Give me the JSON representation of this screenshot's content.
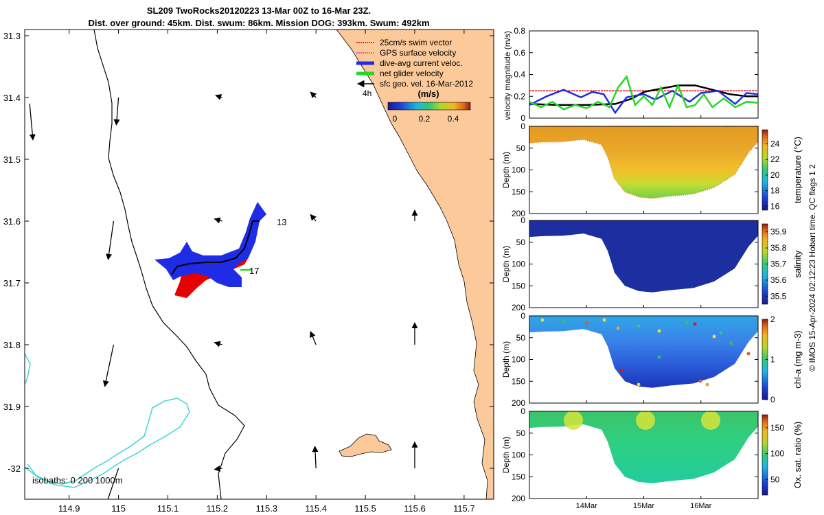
{
  "title": {
    "line1": "SL209 TwoRocks20120223 13-Mar 00Z to 16-Mar 23Z.",
    "line2": "Dist. over ground: 45km. Dist. swum: 86km. Mission DOG: 393km. Swum: 492km"
  },
  "footer": "© IMOS 15-Apr-2024 02:12:23 Hobart time. QC flags 1  2",
  "colors": {
    "land": "#fbc99a",
    "swim": "#e80000",
    "dive": "#1f2ce6",
    "net": "#27d627",
    "isobath": "#39d6d6",
    "black": "#000000",
    "gps": "#e82ce6"
  },
  "chart_data": [
    {
      "type": "map",
      "xticks": [
        "114.9",
        "115",
        "115.1",
        "115.2",
        "115.3",
        "115.4",
        "115.5",
        "115.6",
        "115.7"
      ],
      "yticks": [
        "31.3",
        "31.4",
        "31.5",
        "31.6",
        "31.7",
        "31.8",
        "31.9",
        "-32"
      ],
      "xlim": [
        114.81,
        115.76
      ],
      "ylim": [
        -31.29,
        -32.05
      ],
      "legend": [
        {
          "label": "25cm/s swim vector",
          "color": "#e80000"
        },
        {
          "label": "GPS surface velocity",
          "color": "#e82ce6"
        },
        {
          "label": "dive-avg current veloc.",
          "color": "#1f2ce6"
        },
        {
          "label": "net glider velocity",
          "color": "#27d627"
        },
        {
          "label": "sfc geo. vel. 16-Mar-2012",
          "color": "#000000"
        }
      ],
      "scale_label": "4h",
      "colorbar": {
        "title": "(m/s)",
        "ticks": [
          "0",
          "0.2",
          "0.4"
        ],
        "range": [
          0,
          0.5
        ]
      },
      "annotations": [
        "13",
        "17"
      ],
      "isobath_label": "isobaths: 0   200  1000m",
      "track": [
        [
          115.25,
          -31.62
        ],
        [
          115.2,
          -31.68
        ],
        [
          115.14,
          -31.69
        ],
        [
          115.1,
          -31.72
        ]
      ],
      "geo_vectors": [
        {
          "lon": 114.82,
          "lat": -31.41,
          "u": 0.03,
          "v": -0.33
        },
        {
          "lon": 115.0,
          "lat": -31.4,
          "u": -0.02,
          "v": -0.25
        },
        {
          "lon": 114.99,
          "lat": -31.6,
          "u": -0.05,
          "v": -0.35
        },
        {
          "lon": 114.99,
          "lat": -31.8,
          "u": -0.08,
          "v": -0.38
        },
        {
          "lon": 115.0,
          "lat": -32.0,
          "u": -0.12,
          "v": -0.35
        },
        {
          "lon": 115.21,
          "lat": -31.4,
          "u": -0.06,
          "v": 0.02
        },
        {
          "lon": 115.21,
          "lat": -31.6,
          "u": -0.07,
          "v": 0.02
        },
        {
          "lon": 115.21,
          "lat": -31.8,
          "u": -0.07,
          "v": 0.02
        },
        {
          "lon": 115.21,
          "lat": -32.0,
          "u": -0.07,
          "v": -0.01
        },
        {
          "lon": 115.4,
          "lat": -31.4,
          "u": -0.05,
          "v": 0.05
        },
        {
          "lon": 115.4,
          "lat": -31.6,
          "u": -0.05,
          "v": 0.06
        },
        {
          "lon": 115.4,
          "lat": -31.8,
          "u": -0.05,
          "v": 0.12
        },
        {
          "lon": 115.4,
          "lat": -32.0,
          "u": -0.01,
          "v": 0.2
        },
        {
          "lon": 115.6,
          "lat": -31.6,
          "u": 0.0,
          "v": 0.1
        },
        {
          "lon": 115.6,
          "lat": -31.8,
          "u": 0.0,
          "v": 0.2
        },
        {
          "lon": 115.6,
          "lat": -32.0,
          "u": 0.0,
          "v": 0.24
        }
      ]
    },
    {
      "type": "line",
      "ylabel": "velocity magnitude (m/s)",
      "yticks": [
        "0",
        "0.2",
        "0.4",
        "0.6",
        "0.8"
      ],
      "ylim": [
        0,
        0.8
      ],
      "xlim": [
        "13-Mar",
        "17-Mar"
      ],
      "series": [
        {
          "color": "#e80000",
          "values": [
            [
              13.0,
              0.25
            ],
            [
              17.0,
              0.25
            ]
          ]
        },
        {
          "color": "#000000",
          "values": [
            [
              13.0,
              0.13
            ],
            [
              13.5,
              0.12
            ],
            [
              14.0,
              0.12
            ],
            [
              14.5,
              0.13
            ],
            [
              14.8,
              0.18
            ],
            [
              15.0,
              0.24
            ],
            [
              15.3,
              0.27
            ],
            [
              15.6,
              0.3
            ],
            [
              15.9,
              0.3
            ],
            [
              16.2,
              0.26
            ],
            [
              16.5,
              0.22
            ],
            [
              16.8,
              0.2
            ],
            [
              17.0,
              0.2
            ]
          ]
        },
        {
          "color": "#1f2ce6",
          "values": [
            [
              13.0,
              0.12
            ],
            [
              13.3,
              0.2
            ],
            [
              13.6,
              0.26
            ],
            [
              13.9,
              0.19
            ],
            [
              14.1,
              0.24
            ],
            [
              14.3,
              0.22
            ],
            [
              14.5,
              0.05
            ],
            [
              14.7,
              0.19
            ],
            [
              15.0,
              0.22
            ],
            [
              15.2,
              0.17
            ],
            [
              15.5,
              0.25
            ],
            [
              15.8,
              0.15
            ],
            [
              16.0,
              0.23
            ],
            [
              16.3,
              0.25
            ],
            [
              16.6,
              0.13
            ],
            [
              16.8,
              0.23
            ],
            [
              17.0,
              0.22
            ]
          ]
        },
        {
          "color": "#27d627",
          "values": [
            [
              13.0,
              0.15
            ],
            [
              13.2,
              0.1
            ],
            [
              13.4,
              0.15
            ],
            [
              13.6,
              0.08
            ],
            [
              13.8,
              0.12
            ],
            [
              14.0,
              0.09
            ],
            [
              14.2,
              0.15
            ],
            [
              14.4,
              0.1
            ],
            [
              14.55,
              0.28
            ],
            [
              14.7,
              0.38
            ],
            [
              14.85,
              0.12
            ],
            [
              15.0,
              0.2
            ],
            [
              15.15,
              0.12
            ],
            [
              15.3,
              0.28
            ],
            [
              15.45,
              0.1
            ],
            [
              15.6,
              0.3
            ],
            [
              15.75,
              0.1
            ],
            [
              15.9,
              0.12
            ],
            [
              16.05,
              0.22
            ],
            [
              16.2,
              0.1
            ],
            [
              16.4,
              0.18
            ],
            [
              16.6,
              0.1
            ],
            [
              16.8,
              0.15
            ],
            [
              17.0,
              0.14
            ]
          ]
        }
      ]
    },
    {
      "type": "heatmap",
      "ylabel": "Depth (m)",
      "clabel": "temperature (°C)",
      "yticks": [
        "0",
        "50",
        "100",
        "150",
        "200"
      ],
      "cticks": [
        "16",
        "18",
        "20",
        "22",
        "24"
      ],
      "crange": [
        15.5,
        25.8
      ],
      "surface": [
        22,
        23,
        24
      ],
      "deep": [
        17,
        19,
        21
      ]
    },
    {
      "type": "heatmap",
      "ylabel": "Depth (m)",
      "clabel": "salinity",
      "yticks": [
        "0",
        "50",
        "100",
        "150",
        "200"
      ],
      "cticks": [
        "35.5",
        "35.6",
        "35.7",
        "35.8",
        "35.9"
      ],
      "crange": [
        35.45,
        35.95
      ],
      "surface": [
        35.5,
        35.52
      ],
      "deep": [
        35.52,
        35.55
      ]
    },
    {
      "type": "heatmap",
      "ylabel": "Depth (m)",
      "clabel": "chl-a (mg m-3)",
      "yticks": [
        "0",
        "50",
        "100",
        "150",
        "200"
      ],
      "cticks": [
        "0",
        "1",
        "2"
      ],
      "crange": [
        0,
        2
      ],
      "surface": [
        0.5,
        0.8
      ],
      "deep": [
        0.2,
        0.6
      ]
    },
    {
      "type": "heatmap",
      "ylabel": "Depth (m)",
      "clabel": "Ox. sat. ratio (%)",
      "yticks": [
        "0",
        "50",
        "100",
        "150",
        "200"
      ],
      "cticks": [
        "50",
        "100",
        "150"
      ],
      "crange": [
        20,
        175
      ],
      "surface": [
        100,
        110
      ],
      "deep": [
        85,
        95
      ]
    }
  ],
  "time_axis": {
    "ticks": [
      "14Mar",
      "15Mar",
      "16Mar"
    ]
  }
}
